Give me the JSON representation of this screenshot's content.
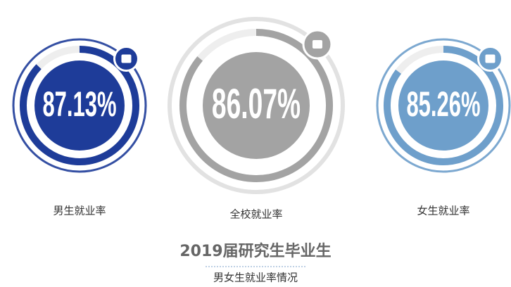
{
  "chart_data": {
    "type": "gauge",
    "title": "2019届研究生毕业生",
    "subtitle": "男女生就业率情况",
    "categories": [
      "男生就业率",
      "全校就业率",
      "女生就业率"
    ],
    "values": [
      87.13,
      86.07,
      85.26
    ],
    "value_labels": [
      "87.13%",
      "86.07%",
      "85.26%"
    ],
    "colors": [
      "#1e3c99",
      "#a3a3a3",
      "#6e9fcb"
    ],
    "ylim": [
      0,
      100
    ]
  }
}
